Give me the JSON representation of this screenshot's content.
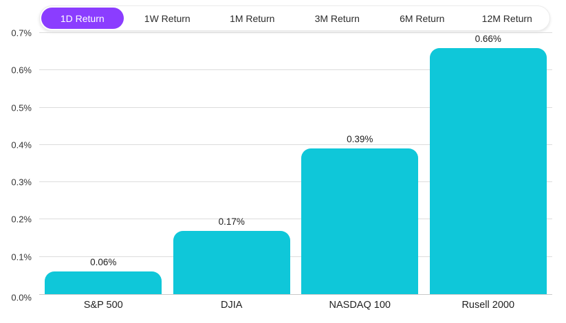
{
  "tabs": {
    "items": [
      {
        "label": "1D Return",
        "selected": true
      },
      {
        "label": "1W Return",
        "selected": false
      },
      {
        "label": "1M Return",
        "selected": false
      },
      {
        "label": "3M Return",
        "selected": false
      },
      {
        "label": "6M Return",
        "selected": false
      },
      {
        "label": "12M Return",
        "selected": false
      }
    ]
  },
  "chart_data": {
    "type": "bar",
    "categories": [
      "S&P 500",
      "DJIA",
      "NASDAQ 100",
      "Rusell 2000"
    ],
    "values": [
      0.06,
      0.17,
      0.39,
      0.66
    ],
    "value_labels": [
      "0.06%",
      "0.17%",
      "0.39%",
      "0.66%"
    ],
    "title": "",
    "xlabel": "",
    "ylabel": "",
    "ylim": [
      0,
      0.7
    ],
    "y_tick_step": 0.1,
    "y_tick_labels": [
      "0.0%",
      "0.1%",
      "0.2%",
      "0.3%",
      "0.4%",
      "0.5%",
      "0.6%",
      "0.7%"
    ],
    "grid": true,
    "legend": "none"
  },
  "colors": {
    "accent_purple": "#8B3DFF",
    "bar_cyan": "#0FC7D9",
    "gridline": "#DCDCDC",
    "axis_line": "#C9C9C9",
    "selected_tab_text": "#FFFFFF",
    "tab_text": "#2B2B2B"
  }
}
